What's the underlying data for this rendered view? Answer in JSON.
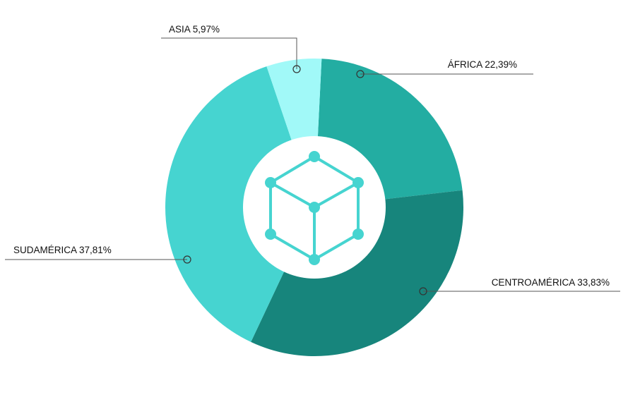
{
  "chart_data": {
    "type": "pie",
    "variant": "donut",
    "title": "",
    "slices": [
      {
        "name": "ÁFRICA",
        "value": 22.39,
        "label": "ÁFRICA 22,39%",
        "color": "#23ADA2"
      },
      {
        "name": "CENTROAMÉRICA",
        "value": 33.83,
        "label": "CENTROAMÉRICA 33,83%",
        "color": "#17857C"
      },
      {
        "name": "SUDAMÉRICA",
        "value": 37.81,
        "label": "SUDAMÉRICA 37,81%",
        "color": "#46D4D0"
      },
      {
        "name": "ASIA",
        "value": 5.97,
        "label": "ASIA 5,97%",
        "color": "#A1F9F8"
      }
    ],
    "legend": "none",
    "center_icon": "cube-network-icon",
    "center_icon_color": "#46D4D0",
    "leader_line_color": "#555555"
  }
}
